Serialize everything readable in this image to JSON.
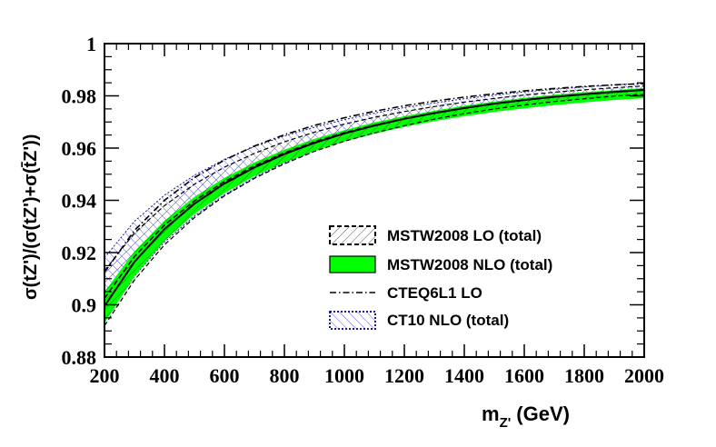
{
  "chart_data": {
    "type": "line",
    "title": "",
    "xlabel": "m",
    "xlabel_sub": "Z'",
    "xlabel_unit": "(GeV)",
    "ylabel": "σ(tZ')/(σ(tZ')+σ(t̄Z'))",
    "xlim": [
      200,
      2000
    ],
    "ylim": [
      0.88,
      1.0
    ],
    "x_ticks": [
      "200",
      "400",
      "600",
      "800",
      "1000",
      "1200",
      "1400",
      "1600",
      "1800",
      "2000"
    ],
    "y_ticks": [
      "0.88",
      "0.9",
      "0.92",
      "0.94",
      "0.96",
      "0.98",
      "1"
    ],
    "grid": false,
    "legend_position": "center-right",
    "x": [
      200,
      300,
      400,
      500,
      600,
      700,
      800,
      900,
      1000,
      1100,
      1200,
      1300,
      1400,
      1500,
      1600,
      1700,
      1800,
      1900,
      2000
    ],
    "series": [
      {
        "name": "MSTW2008 LO (total)",
        "style": "dashed-hatched-band",
        "central": [
          0.9025,
          0.9185,
          0.9305,
          0.9398,
          0.9472,
          0.9532,
          0.9582,
          0.9624,
          0.9659,
          0.9688,
          0.9713,
          0.9735,
          0.9754,
          0.977,
          0.9784,
          0.9796,
          0.9806,
          0.9815,
          0.9822
        ],
        "upper": [
          0.913,
          0.9275,
          0.938,
          0.9462,
          0.9527,
          0.958,
          0.9624,
          0.9661,
          0.9692,
          0.9718,
          0.974,
          0.9759,
          0.9776,
          0.979,
          0.9803,
          0.9814,
          0.9823,
          0.9831,
          0.9838
        ],
        "lower": [
          0.892,
          0.9095,
          0.923,
          0.9334,
          0.9417,
          0.9484,
          0.954,
          0.9587,
          0.9626,
          0.9658,
          0.9686,
          0.9711,
          0.9732,
          0.975,
          0.9765,
          0.9778,
          0.9789,
          0.9799,
          0.9806
        ]
      },
      {
        "name": "MSTW2008 NLO (total)",
        "style": "green-band",
        "central": [
          0.8995,
          0.9165,
          0.929,
          0.9387,
          0.9464,
          0.9526,
          0.9577,
          0.962,
          0.9656,
          0.9686,
          0.9712,
          0.9734,
          0.9753,
          0.977,
          0.9784,
          0.9796,
          0.9806,
          0.9815,
          0.9823
        ],
        "upper": [
          0.905,
          0.9205,
          0.9322,
          0.9413,
          0.9486,
          0.9545,
          0.9594,
          0.9635,
          0.9669,
          0.9698,
          0.9722,
          0.9743,
          0.9762,
          0.9778,
          0.9792,
          0.9804,
          0.9814,
          0.9822,
          0.983
        ],
        "lower": [
          0.893,
          0.911,
          0.9245,
          0.9348,
          0.9428,
          0.9493,
          0.9545,
          0.9589,
          0.9625,
          0.9655,
          0.9681,
          0.9703,
          0.9722,
          0.9738,
          0.9752,
          0.9764,
          0.9775,
          0.9784,
          0.9791
        ]
      },
      {
        "name": "CTEQ6L1 LO",
        "style": "dash-dot-line",
        "central": [
          0.9125,
          0.9285,
          0.94,
          0.9487,
          0.9554,
          0.9608,
          0.9651,
          0.9687,
          0.9716,
          0.9741,
          0.9762,
          0.978,
          0.9795,
          0.9808,
          0.9819,
          0.9828,
          0.9836,
          0.9842,
          0.9847
        ]
      },
      {
        "name": "CT10 NLO (total)",
        "style": "dotted-blue-hatched-band",
        "central": [
          0.906,
          0.9215,
          0.933,
          0.9418,
          0.9489,
          0.9547,
          0.9595,
          0.9635,
          0.9669,
          0.9698,
          0.9722,
          0.9743,
          0.9761,
          0.9777,
          0.9791,
          0.9802,
          0.9812,
          0.9821,
          0.9829
        ],
        "upper": [
          0.918,
          0.932,
          0.942,
          0.9496,
          0.9557,
          0.9606,
          0.9646,
          0.968,
          0.9709,
          0.9734,
          0.9755,
          0.9773,
          0.9789,
          0.9803,
          0.9815,
          0.9825,
          0.9834,
          0.9842,
          0.9848
        ],
        "lower": [
          0.894,
          0.911,
          0.924,
          0.934,
          0.9421,
          0.9488,
          0.9544,
          0.959,
          0.9629,
          0.9662,
          0.9689,
          0.9713,
          0.9733,
          0.9751,
          0.9767,
          0.978,
          0.979,
          0.98,
          0.9809
        ]
      }
    ],
    "colors": {
      "nlo_fill": "#00ff00",
      "ct10_hatch": "#5a5aff",
      "ct10_border": "#1a1a8c",
      "lo_hatch": "#555555",
      "axis": "#000000"
    }
  }
}
